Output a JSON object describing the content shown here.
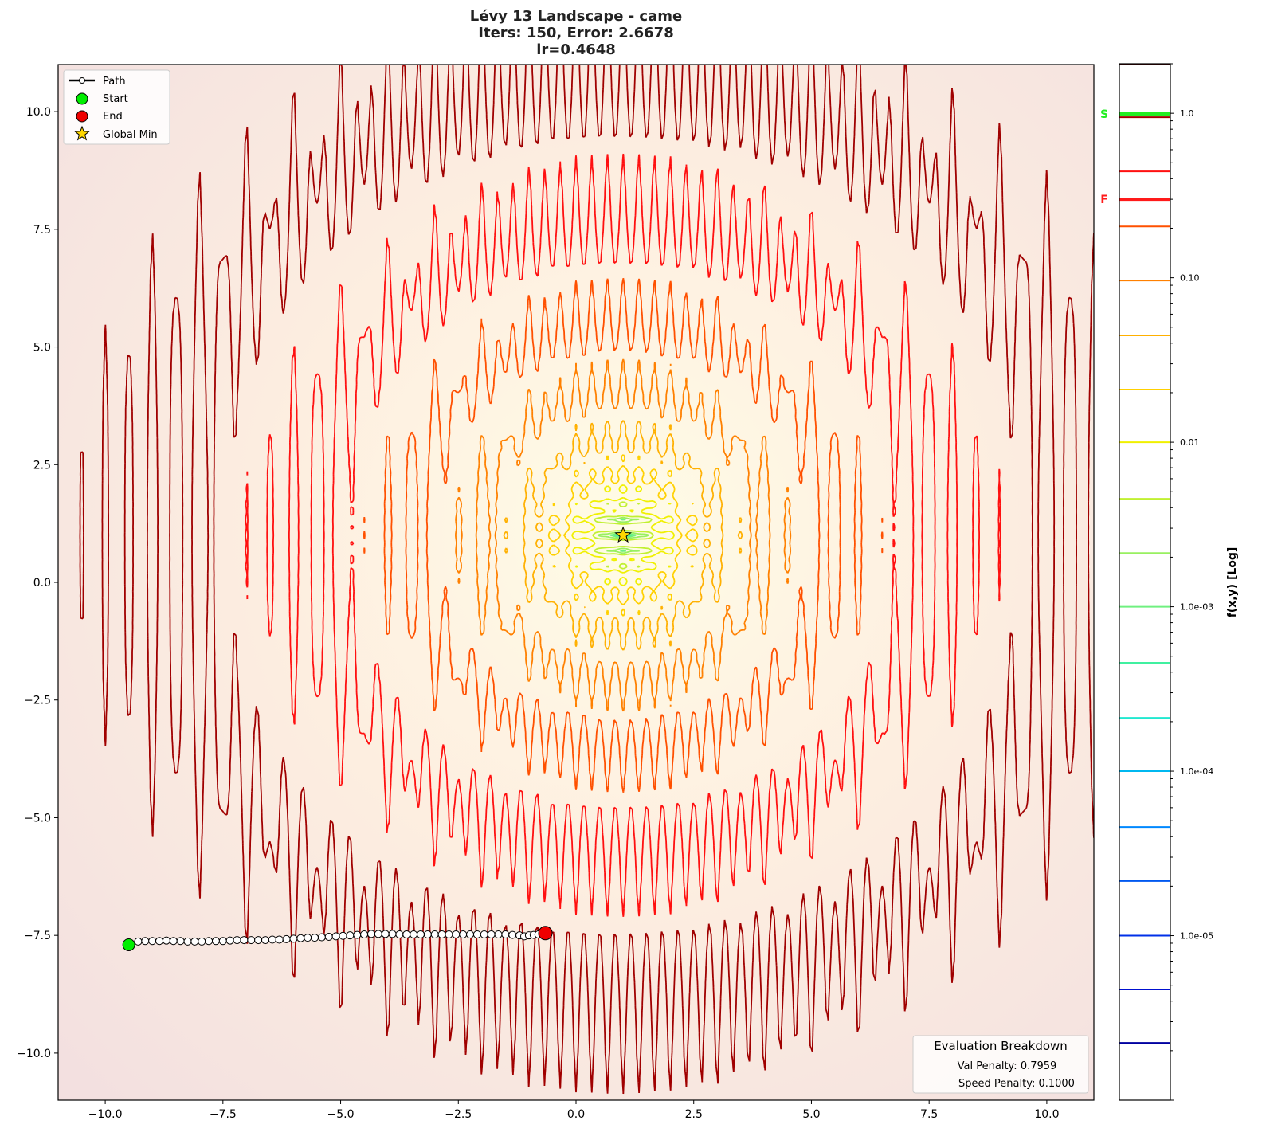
{
  "chart_data": {
    "type": "contour",
    "title_lines": [
      "Lévy 13 Landscape - came",
      "Iters: 150, Error: 2.6678",
      "lr=0.4648"
    ],
    "xlim": [
      -11,
      11
    ],
    "ylim": [
      -11,
      11
    ],
    "xticks": [
      -10,
      -7.5,
      -5,
      -2.5,
      0,
      2.5,
      5,
      7.5,
      10
    ],
    "xtick_labels": [
      "−10.0",
      "−7.5",
      "−5.0",
      "−2.5",
      "0.0",
      "2.5",
      "5.0",
      "7.5",
      "10.0"
    ],
    "yticks": [
      10,
      7.5,
      5,
      2.5,
      0,
      -2.5,
      -5,
      -7.5,
      -10
    ],
    "ytick_labels": [
      "10.0",
      "7.5",
      "5.0",
      "2.5",
      "0.0",
      "−2.5",
      "−5.0",
      "−7.5",
      "−10.0"
    ],
    "grid": false,
    "contour_levels": [
      2.23e-06,
      4.71e-06,
      1e-05,
      2.15e-05,
      4.58e-05,
      0.0001,
      0.000211,
      0.000456,
      0.001,
      0.00212,
      0.00453,
      0.01,
      0.0209,
      0.0446,
      0.0962,
      0.205,
      0.443,
      0.946
    ],
    "level_colors": [
      "#0000a0",
      "#0010d0",
      "#0030e8",
      "#0058f0",
      "#0088ff",
      "#00b8f0",
      "#20e8d0",
      "#40f0a0",
      "#70f080",
      "#98f060",
      "#c0f030",
      "#f0f000",
      "#ffd000",
      "#ffb000",
      "#ff8000",
      "#ff5000",
      "#ff1010",
      "#a00000"
    ],
    "colorbar": {
      "label": "f(x,y) [Log]",
      "scale": "log",
      "range": [
        1e-06,
        2
      ],
      "ticks": [
        1.0,
        0.1,
        0.01,
        0.001,
        0.0001,
        1e-05
      ],
      "tick_labels": [
        "1.0",
        "0.10",
        "0.01",
        "1.0e-03",
        "1.0e-04",
        "1.0e-05"
      ],
      "start_marker": {
        "label": "S",
        "value": 0.99,
        "color": "#22ee22"
      },
      "final_marker": {
        "label": "F",
        "value": 0.3,
        "color": "#ff1a1a"
      }
    },
    "path": {
      "x": [
        -9.5,
        -9.3,
        -9.15,
        -9.0,
        -8.85,
        -8.7,
        -8.55,
        -8.4,
        -8.25,
        -8.1,
        -7.95,
        -7.8,
        -7.65,
        -7.5,
        -7.35,
        -7.2,
        -7.05,
        -6.9,
        -6.75,
        -6.6,
        -6.45,
        -6.3,
        -6.15,
        -6.0,
        -5.85,
        -5.7,
        -5.55,
        -5.4,
        -5.25,
        -5.1,
        -4.95,
        -4.8,
        -4.65,
        -4.5,
        -4.35,
        -4.2,
        -4.05,
        -3.9,
        -3.75,
        -3.6,
        -3.45,
        -3.3,
        -3.15,
        -3.0,
        -2.85,
        -2.7,
        -2.55,
        -2.4,
        -2.25,
        -2.1,
        -1.95,
        -1.8,
        -1.65,
        -1.5,
        -1.35,
        -1.2,
        -1.1,
        -1.0,
        -0.9,
        -0.8,
        -0.72,
        -0.65
      ],
      "y": [
        -7.7,
        -7.63,
        -7.62,
        -7.62,
        -7.62,
        -7.61,
        -7.62,
        -7.62,
        -7.63,
        -7.63,
        -7.63,
        -7.62,
        -7.62,
        -7.62,
        -7.61,
        -7.6,
        -7.6,
        -7.6,
        -7.6,
        -7.6,
        -7.59,
        -7.59,
        -7.58,
        -7.57,
        -7.56,
        -7.55,
        -7.55,
        -7.54,
        -7.53,
        -7.52,
        -7.51,
        -7.5,
        -7.49,
        -7.48,
        -7.47,
        -7.47,
        -7.47,
        -7.47,
        -7.48,
        -7.48,
        -7.48,
        -7.48,
        -7.48,
        -7.48,
        -7.48,
        -7.48,
        -7.48,
        -7.48,
        -7.48,
        -7.48,
        -7.48,
        -7.48,
        -7.48,
        -7.48,
        -7.49,
        -7.5,
        -7.52,
        -7.5,
        -7.49,
        -7.48,
        -7.47,
        -7.45
      ]
    },
    "start": {
      "x": -9.5,
      "y": -7.7,
      "color": "#00ee00"
    },
    "end": {
      "x": -0.65,
      "y": -7.45,
      "color": "#ee0000"
    },
    "global_min": {
      "x": 1,
      "y": 1,
      "color": "#ffd700"
    },
    "legend": {
      "placement": "upper-left",
      "entries": [
        "Path",
        "Start",
        "End",
        "Global Min"
      ]
    },
    "evaluation_box": {
      "title": "Evaluation Breakdown",
      "lines": [
        "Val Penalty: 0.7959",
        "Speed Penalty: 0.1000"
      ]
    }
  }
}
